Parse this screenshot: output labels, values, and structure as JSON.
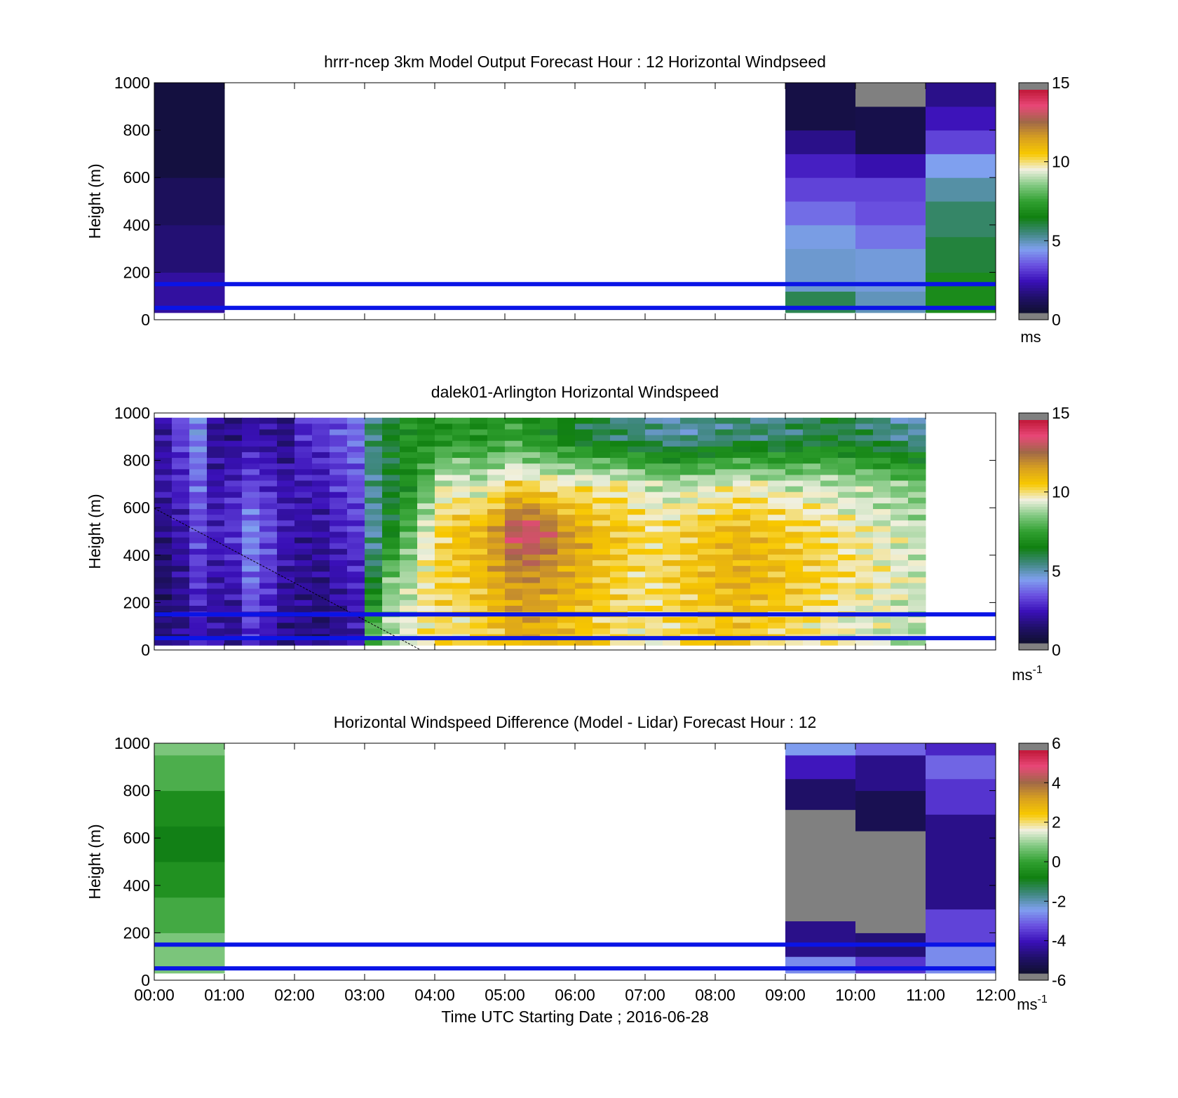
{
  "colorbar": {
    "stops": [
      "#101030",
      "#20106a",
      "#3a10b8",
      "#6a50e0",
      "#80a0f0",
      "#408880",
      "#108010",
      "#30a030",
      "#80c880",
      "#f0f0e0",
      "#f8c800",
      "#d8a020",
      "#a06848",
      "#e84878",
      "#c01838"
    ]
  },
  "chart_data": [
    {
      "id": "model",
      "type": "heatmap",
      "title": "hrrr-ncep 3km Model Output   Forecast Hour : 12 Horizontal Windpseed",
      "ylabel": "Height (m)",
      "xlabel": "",
      "xlim": [
        0,
        12
      ],
      "ylim": [
        0,
        1000
      ],
      "y_ticks": [
        "0",
        "200",
        "400",
        "600",
        "800",
        "1000"
      ],
      "x_ticks": [],
      "colorbar": {
        "range": [
          0,
          15
        ],
        "ticks": [
          "0",
          "5",
          "10",
          "15"
        ],
        "unit": "ms",
        "unit_sup": ""
      },
      "reference_lines_m": [
        150,
        50
      ],
      "columns": [
        {
          "x0": 0,
          "x1": 1,
          "bins": [
            [
              30,
              200,
              1.8
            ],
            [
              200,
              400,
              1.2
            ],
            [
              400,
              600,
              0.8
            ],
            [
              600,
              1000,
              0.3
            ]
          ]
        },
        {
          "x0": 9,
          "x1": 10,
          "bins": [
            [
              30,
              120,
              5.8
            ],
            [
              120,
              300,
              4.6
            ],
            [
              300,
              400,
              4.4
            ],
            [
              400,
              500,
              3.6
            ],
            [
              500,
              600,
              3.0
            ],
            [
              600,
              700,
              2.4
            ],
            [
              700,
              800,
              1.5
            ],
            [
              800,
              1000,
              0.4
            ]
          ]
        },
        {
          "x0": 10,
          "x1": 11,
          "bins": [
            [
              30,
              120,
              4.8
            ],
            [
              120,
              300,
              4.5
            ],
            [
              300,
              400,
              3.7
            ],
            [
              400,
              500,
              3.2
            ],
            [
              500,
              600,
              3.0
            ],
            [
              600,
              700,
              2.0
            ],
            [
              700,
              900,
              0.5
            ],
            [
              900,
              1000,
              -0.3
            ]
          ]
        },
        {
          "x0": 11,
          "x1": 12,
          "bins": [
            [
              30,
              200,
              6.8
            ],
            [
              200,
              350,
              6.0
            ],
            [
              350,
              500,
              5.6
            ],
            [
              500,
              600,
              5.0
            ],
            [
              600,
              700,
              4.3
            ],
            [
              700,
              800,
              3.0
            ],
            [
              800,
              900,
              2.2
            ],
            [
              900,
              1000,
              1.5
            ]
          ]
        }
      ]
    },
    {
      "id": "lidar",
      "type": "heatmap",
      "title": "dalek01-Arlington  Horizontal Windspeed",
      "ylabel": "Height (m)",
      "xlabel": "",
      "xlim": [
        0,
        12
      ],
      "ylim": [
        0,
        1000
      ],
      "y_ticks": [
        "0",
        "200",
        "400",
        "600",
        "800",
        "1000"
      ],
      "x_ticks": [],
      "colorbar": {
        "range": [
          0,
          15
        ],
        "ticks": [
          "0",
          "5",
          "10",
          "15"
        ],
        "unit": "ms",
        "unit_sup": "-1"
      },
      "reference_lines_m": [
        150,
        50
      ],
      "column_step_h": 0.25,
      "profile_heights_m": [
        100,
        300,
        500,
        700,
        900
      ],
      "profiles": [
        [
          1.2,
          1.0,
          1.4,
          2.0,
          1.8
        ],
        [
          1.5,
          1.6,
          2.0,
          2.5,
          3.0
        ],
        [
          2.2,
          2.8,
          3.0,
          3.5,
          4.0
        ],
        [
          1.8,
          2.0,
          2.4,
          2.0,
          1.6
        ],
        [
          1.6,
          2.2,
          2.8,
          2.4,
          1.5
        ],
        [
          2.8,
          3.6,
          4.0,
          3.0,
          2.0
        ],
        [
          2.2,
          2.8,
          3.2,
          2.6,
          1.8
        ],
        [
          1.5,
          1.8,
          2.2,
          2.0,
          1.4
        ],
        [
          1.4,
          1.6,
          1.8,
          2.2,
          2.6
        ],
        [
          1.2,
          1.5,
          1.8,
          2.2,
          2.8
        ],
        [
          1.6,
          2.0,
          2.4,
          2.8,
          3.2
        ],
        [
          2.0,
          2.4,
          2.8,
          3.2,
          3.6
        ],
        [
          8.0,
          6.0,
          5.0,
          5.2,
          5.5
        ],
        [
          9.0,
          8.5,
          6.5,
          6.0,
          6.2
        ],
        [
          9.5,
          9.0,
          8.0,
          6.8,
          7.0
        ],
        [
          10.0,
          10.0,
          9.5,
          8.0,
          6.8
        ],
        [
          10.2,
          10.5,
          10.5,
          9.5,
          7.0
        ],
        [
          10.0,
          10.6,
          11.0,
          9.5,
          7.2
        ],
        [
          10.5,
          11.0,
          11.2,
          9.2,
          7.0
        ],
        [
          10.8,
          11.5,
          12.0,
          9.8,
          7.2
        ],
        [
          11.5,
          12.0,
          13.5,
          10.5,
          7.5
        ],
        [
          11.5,
          12.0,
          13.8,
          10.2,
          7.0
        ],
        [
          11.2,
          11.8,
          13.0,
          10.0,
          6.8
        ],
        [
          11.0,
          11.5,
          12.0,
          9.8,
          6.4
        ],
        [
          10.8,
          11.2,
          11.5,
          10.0,
          6.0
        ],
        [
          10.5,
          10.8,
          11.0,
          9.8,
          5.8
        ],
        [
          10.2,
          10.5,
          10.8,
          10.0,
          5.6
        ],
        [
          10.0,
          10.2,
          10.5,
          9.5,
          5.5
        ],
        [
          10.0,
          10.2,
          10.2,
          9.2,
          5.2
        ],
        [
          10.2,
          10.5,
          10.4,
          9.0,
          5.0
        ],
        [
          10.4,
          10.8,
          10.6,
          9.2,
          5.0
        ],
        [
          10.6,
          11.0,
          10.8,
          9.4,
          5.2
        ],
        [
          10.8,
          11.2,
          11.0,
          9.6,
          5.4
        ],
        [
          10.8,
          11.4,
          11.2,
          9.8,
          5.5
        ],
        [
          10.6,
          11.2,
          11.0,
          9.6,
          5.5
        ],
        [
          10.4,
          11.0,
          10.8,
          9.4,
          5.4
        ],
        [
          10.2,
          10.8,
          10.6,
          9.2,
          5.6
        ],
        [
          10.0,
          10.6,
          10.4,
          9.4,
          5.8
        ],
        [
          9.8,
          10.4,
          10.2,
          9.2,
          6.0
        ],
        [
          9.6,
          10.2,
          10.0,
          9.0,
          5.8
        ],
        [
          9.5,
          10.0,
          9.8,
          9.0,
          5.6
        ],
        [
          9.4,
          9.8,
          9.6,
          8.8,
          5.4
        ],
        [
          9.2,
          9.6,
          9.4,
          8.6,
          5.2
        ],
        [
          9.0,
          9.4,
          9.2,
          8.4,
          5.0
        ]
      ]
    },
    {
      "id": "difference",
      "type": "heatmap",
      "title": "Horizontal Windspeed Difference (Model - Lidar) Forecast Hour : 12",
      "ylabel": "Height (m)",
      "xlabel": "Time UTC  Starting Date ; 2016-06-28",
      "xlim": [
        0,
        12
      ],
      "ylim": [
        0,
        1000
      ],
      "y_ticks": [
        "0",
        "200",
        "400",
        "600",
        "800",
        "1000"
      ],
      "x_ticks": [
        "00:00",
        "01:00",
        "02:00",
        "03:00",
        "04:00",
        "05:00",
        "06:00",
        "07:00",
        "08:00",
        "09:00",
        "10:00",
        "11:00",
        "12:00"
      ],
      "colorbar": {
        "range": [
          -6,
          6
        ],
        "ticks": [
          "-6",
          "-4",
          "-2",
          "0",
          "2",
          "4",
          "6"
        ],
        "unit": "ms",
        "unit_sup": "-1"
      },
      "reference_lines_m": [
        150,
        50
      ],
      "columns": [
        {
          "x0": 0,
          "x1": 1,
          "bins": [
            [
              30,
              200,
              0.8
            ],
            [
              200,
              350,
              0.2
            ],
            [
              350,
              500,
              -0.4
            ],
            [
              500,
              650,
              -0.9
            ],
            [
              650,
              800,
              -0.5
            ],
            [
              800,
              950,
              0.3
            ],
            [
              950,
              1000,
              0.8
            ]
          ]
        },
        {
          "x0": 9,
          "x1": 10,
          "bins": [
            [
              30,
              100,
              -2.8
            ],
            [
              100,
              250,
              -4.8
            ],
            [
              250,
              720,
              -6.3
            ],
            [
              720,
              850,
              -5.2
            ],
            [
              850,
              950,
              -4.2
            ],
            [
              950,
              1000,
              -2.6
            ]
          ]
        },
        {
          "x0": 10,
          "x1": 11,
          "bins": [
            [
              30,
              100,
              -3.8
            ],
            [
              100,
              200,
              -5.0
            ],
            [
              200,
              630,
              -6.3
            ],
            [
              630,
              800,
              -5.5
            ],
            [
              800,
              950,
              -4.8
            ],
            [
              950,
              1000,
              -3.2
            ]
          ]
        },
        {
          "x0": 11,
          "x1": 12,
          "bins": [
            [
              30,
              150,
              -2.8
            ],
            [
              150,
              300,
              -3.6
            ],
            [
              300,
              700,
              -4.8
            ],
            [
              700,
              850,
              -3.8
            ],
            [
              850,
              950,
              -3.2
            ],
            [
              950,
              1000,
              -4.0
            ]
          ]
        }
      ]
    }
  ]
}
